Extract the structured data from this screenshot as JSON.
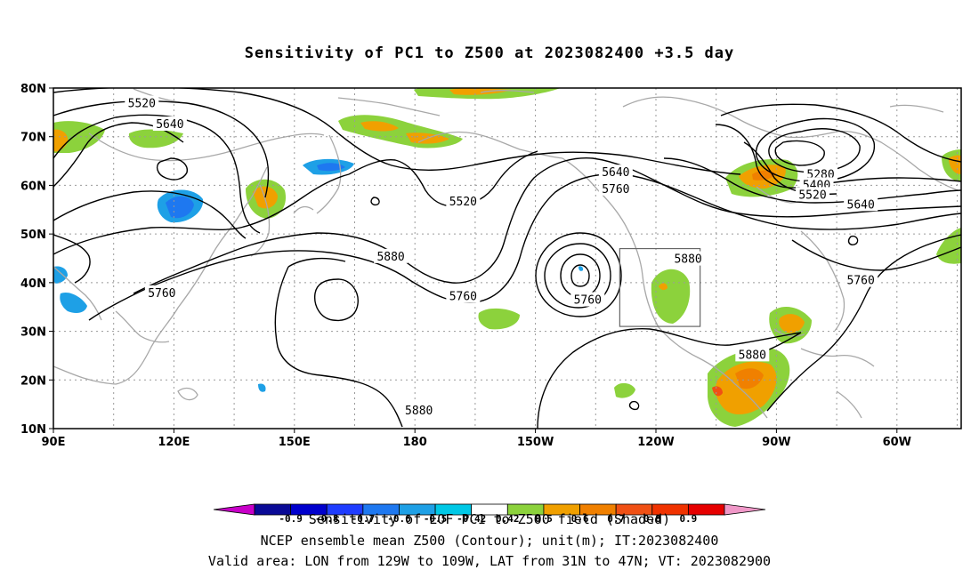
{
  "title": "Sensitivity of PC1 to Z500 at 2023082400 +3.5 day",
  "map": {
    "lon_labels": [
      "90E",
      "120E",
      "150E",
      "180",
      "150W",
      "120W",
      "90W",
      "60W"
    ],
    "lat_labels": [
      "80N",
      "70N",
      "60N",
      "50N",
      "40N",
      "30N",
      "20N",
      "10N"
    ],
    "contour_labels": [
      {
        "text": "5520",
        "lon": 112,
        "lat": 76.8
      },
      {
        "text": "5640",
        "lon": 119,
        "lat": 72.5
      },
      {
        "text": "5520",
        "lon": -168,
        "lat": 56.6
      },
      {
        "text": "5640",
        "lon": -130,
        "lat": 62.6
      },
      {
        "text": "5760",
        "lon": -130,
        "lat": 59.2
      },
      {
        "text": "5280",
        "lon": -79,
        "lat": 62.2
      },
      {
        "text": "5400",
        "lon": -80,
        "lat": 60.0
      },
      {
        "text": "5520",
        "lon": -81,
        "lat": 58.0
      },
      {
        "text": "5640",
        "lon": -69,
        "lat": 56.0
      },
      {
        "text": "5880",
        "lon": -112,
        "lat": 44.8
      },
      {
        "text": "5880",
        "lon": 174,
        "lat": 45.3
      },
      {
        "text": "5760",
        "lon": 117,
        "lat": 37.8
      },
      {
        "text": "5760",
        "lon": -168,
        "lat": 37.1
      },
      {
        "text": "5760",
        "lon": -137,
        "lat": 36.4
      },
      {
        "text": "5760",
        "lon": -69,
        "lat": 40.4
      },
      {
        "text": "5880",
        "lon": -96,
        "lat": 25.1
      },
      {
        "text": "5880",
        "lon": -179,
        "lat": 13.7
      }
    ],
    "box_lon": [
      -129,
      -109
    ],
    "box_lat": [
      31,
      47
    ]
  },
  "colorbar": {
    "labels": [
      "-0.9",
      "-0.8",
      "-0.7",
      "-0.6",
      "-0.5",
      "-0.42",
      "0.42",
      "0.5",
      "0.6",
      "0.7",
      "0.8",
      "0.9"
    ],
    "colors": [
      "#c800c8",
      "#0a0a96",
      "#0000cd",
      "#1e3cff",
      "#1e78f0",
      "#1ea0e6",
      "#00c8e6",
      "#ffffff",
      "#8cd23c",
      "#f0a000",
      "#f08000",
      "#f05014",
      "#f03200",
      "#e60000",
      "#f098c8"
    ]
  },
  "footer": {
    "line1": "Sensitivity of EOF PC1 to Z500 field (Shaded)",
    "line2": "NCEP ensemble mean Z500 (Contour); unit(m); IT:2023082400",
    "line3": "Valid area: LON from 129W to 109W, LAT from 31N to 47N; VT: 2023082900"
  }
}
